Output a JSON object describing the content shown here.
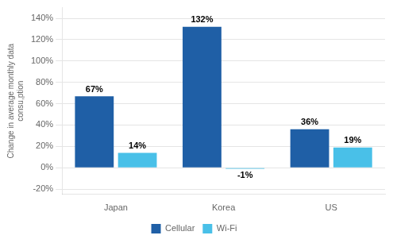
{
  "chart_data": {
    "type": "bar",
    "categories": [
      "Japan",
      "Korea",
      "US"
    ],
    "series": [
      {
        "name": "Cellular",
        "color": "#1F5FA6",
        "values": [
          67,
          132,
          36
        ],
        "value_labels": [
          "67%",
          "132%",
          "36%"
        ]
      },
      {
        "name": "Wi-Fi",
        "color": "#49C0E8",
        "values": [
          14,
          -1,
          19
        ],
        "value_labels": [
          "14%",
          "-1%",
          "19%"
        ]
      }
    ],
    "ylabel": [
      "Change in average monthly data",
      "consu,ption"
    ],
    "ylim": [
      -25,
      150
    ],
    "yticks": [
      {
        "value": -20,
        "label": "-20%"
      },
      {
        "value": 0,
        "label": "0%"
      },
      {
        "value": 20,
        "label": "20%"
      },
      {
        "value": 40,
        "label": "40%"
      },
      {
        "value": 60,
        "label": "60%"
      },
      {
        "value": 80,
        "label": "80%"
      },
      {
        "value": 100,
        "label": "100%"
      },
      {
        "value": 120,
        "label": "120%"
      },
      {
        "value": 140,
        "label": "140%"
      }
    ],
    "grid": true,
    "legend": "bottom",
    "data_labels": true
  }
}
